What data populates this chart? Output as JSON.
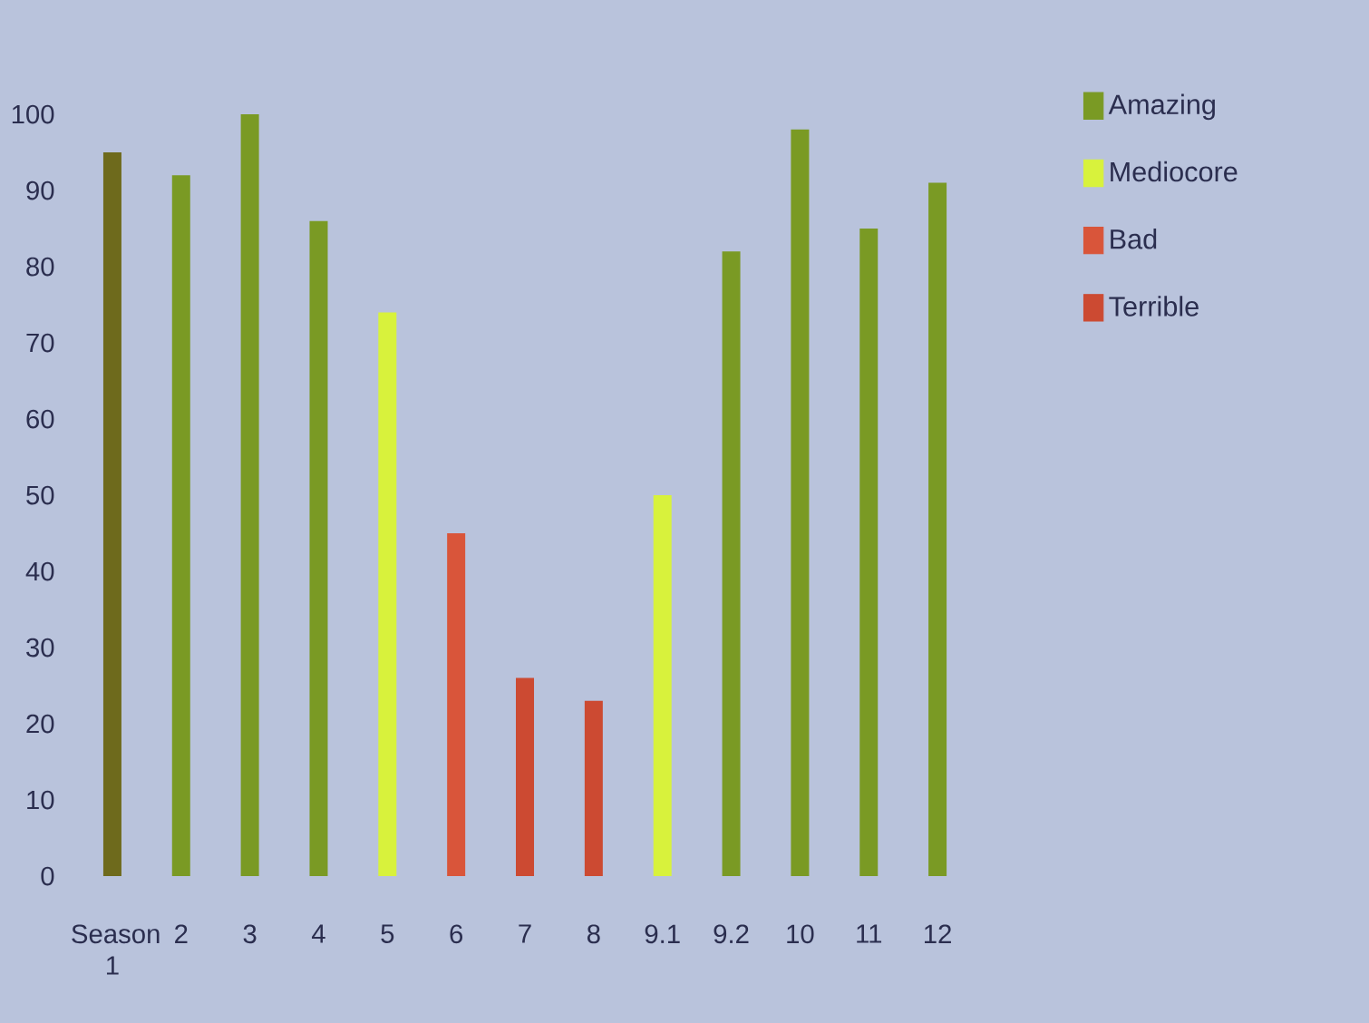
{
  "chart_data": {
    "type": "bar",
    "categories": [
      "Season 1",
      "2",
      "3",
      "4",
      "5",
      "6",
      "7",
      "8",
      "9.1",
      "9.2",
      "10",
      "11",
      "12"
    ],
    "series": [
      {
        "name": "Amazing",
        "color": "#7a9a24",
        "colors": [
          "#6e6a1c",
          "#7a9a24",
          "#7a9a24",
          "#7a9a24",
          null,
          null,
          null,
          null,
          null,
          "#7a9a24",
          "#7a9a24",
          "#7a9a24",
          "#7a9a24"
        ],
        "values": [
          95,
          92,
          100,
          86,
          null,
          null,
          null,
          null,
          null,
          82,
          98,
          85,
          91
        ]
      },
      {
        "name": "Mediocore",
        "color": "#d8f23c",
        "values": [
          null,
          null,
          null,
          null,
          74,
          null,
          null,
          null,
          50,
          null,
          null,
          null,
          null
        ]
      },
      {
        "name": "Bad",
        "color": "#d9553a",
        "values": [
          null,
          null,
          null,
          null,
          null,
          45,
          null,
          null,
          null,
          null,
          null,
          null,
          null
        ]
      },
      {
        "name": "Terrible",
        "color": "#cc4a32",
        "values": [
          null,
          null,
          null,
          null,
          null,
          null,
          26,
          23,
          null,
          null,
          null,
          null,
          null
        ]
      }
    ],
    "ylim": [
      0,
      100
    ],
    "yticks": [
      0,
      10,
      20,
      30,
      40,
      50,
      60,
      70,
      80,
      90,
      100
    ],
    "legend": "top right"
  }
}
